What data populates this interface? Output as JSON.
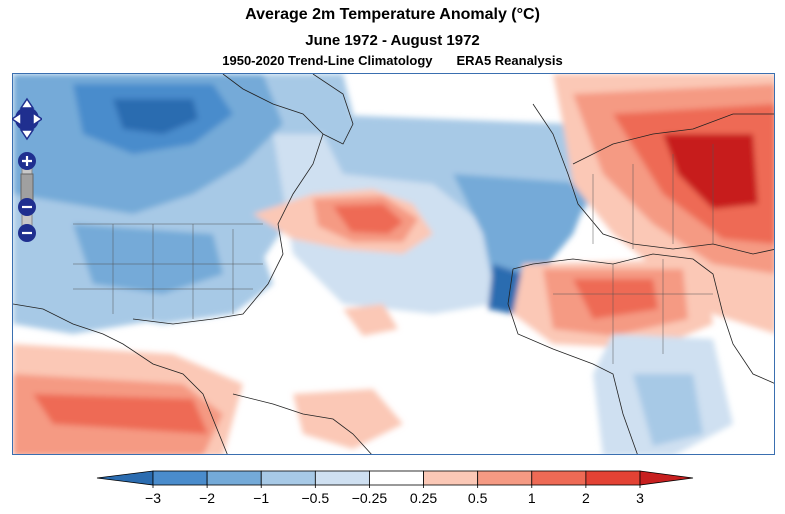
{
  "title": "Average 2m Temperature Anomaly (°C)",
  "period": "June 1972 - August 1972",
  "climatology": "1950-2020 Trend-Line Climatology",
  "source": "ERA5 Reanalysis",
  "colorbar": {
    "ticks": [
      "−3",
      "−2",
      "−1",
      "−0.5",
      "−0.25",
      "0.25",
      "0.5",
      "1",
      "2",
      "3"
    ],
    "colors": [
      "#2b6cb0",
      "#4a8ccc",
      "#74aad8",
      "#a7c9e6",
      "#cfe0f1",
      "#ffffff",
      "#fbc8b6",
      "#f59a83",
      "#ee6a55",
      "#e34234",
      "#c71f1f"
    ]
  },
  "nav": {
    "pan_icon": "pan-arrows-icon",
    "zoom_in_icon": "zoom-in-icon",
    "zoom_out_icon": "zoom-out-icon"
  }
}
